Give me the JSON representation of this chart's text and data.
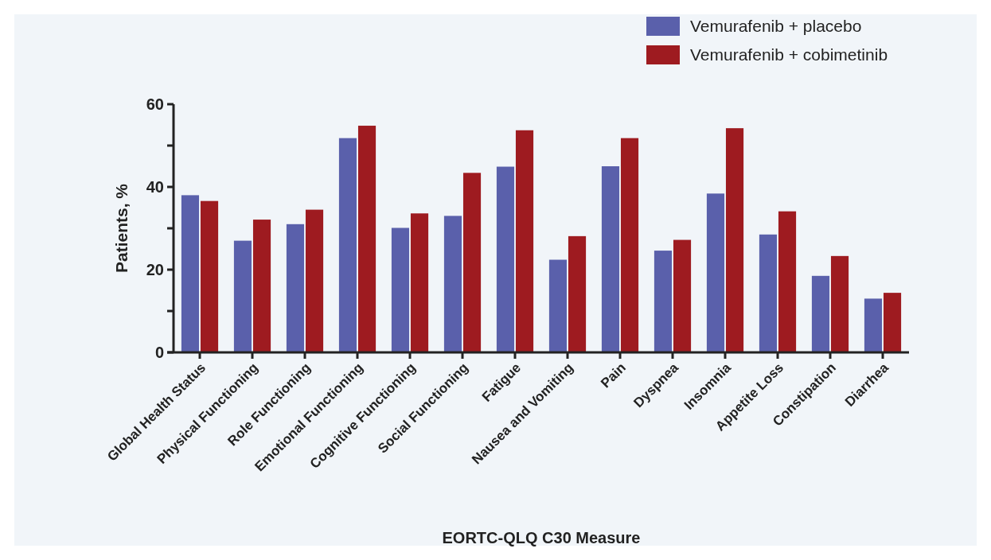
{
  "chart_data": {
    "type": "bar",
    "xlabel": "EORTC-QLQ C30 Measure",
    "ylabel": "Patients, %",
    "categories": [
      "Global Health Status",
      "Physical Functioning",
      "Role Functioning",
      "Emotional Functioning",
      "Cognitive Functioning",
      "Social Functioning",
      "Fatigue",
      "Nausea and Vomiting",
      "Pain",
      "Dyspnea",
      "Insomnia",
      "Appetite Loss",
      "Constipation",
      "Diarrhea"
    ],
    "series": [
      {
        "name": "Vemurafenib + placebo",
        "color": "#5a60ab",
        "values": [
          38.0,
          27.0,
          31.0,
          51.8,
          30.1,
          33.0,
          44.9,
          22.4,
          45.0,
          24.6,
          38.4,
          28.5,
          18.5,
          13.0
        ]
      },
      {
        "name": "Vemurafenib + cobimetinib",
        "color": "#9e1b20",
        "values": [
          36.6,
          32.1,
          34.5,
          54.8,
          33.6,
          43.4,
          53.7,
          28.1,
          51.8,
          27.2,
          54.2,
          34.1,
          23.3,
          14.4
        ]
      }
    ],
    "ylim": [
      0,
      60
    ],
    "yticks": [
      0,
      {
        "value": 10,
        "label": null
      },
      20,
      {
        "value": 30,
        "label": null
      },
      40,
      {
        "value": 50,
        "label": null
      },
      60
    ],
    "grid": false,
    "legend": "top right"
  }
}
